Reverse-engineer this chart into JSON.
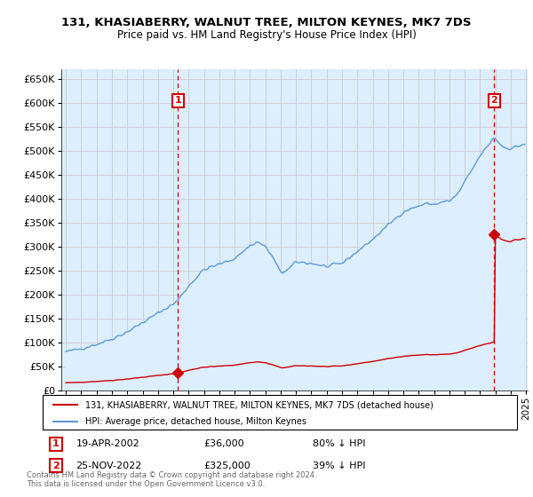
{
  "title": "131, KHASIABERRY, WALNUT TREE, MILTON KEYNES, MK7 7DS",
  "subtitle": "Price paid vs. HM Land Registry's House Price Index (HPI)",
  "legend_line1": "131, KHASIABERRY, WALNUT TREE, MILTON KEYNES, MK7 7DS (detached house)",
  "legend_line2": "HPI: Average price, detached house, Milton Keynes",
  "annotation1_date": "19-APR-2002",
  "annotation1_price": "£36,000",
  "annotation1_hpi": "80% ↓ HPI",
  "annotation2_date": "25-NOV-2022",
  "annotation2_price": "£325,000",
  "annotation2_hpi": "39% ↓ HPI",
  "footer": "Contains HM Land Registry data © Crown copyright and database right 2024.\nThis data is licensed under the Open Government Licence v3.0.",
  "ylim": [
    0,
    670000
  ],
  "sale1_x": 2002.3,
  "sale1_price": 36000,
  "sale2_x": 2022.92,
  "sale2_price": 325000,
  "hpi_color": "#5b9bd5",
  "hpi_fill_color": "#ddeeff",
  "price_color": "#cc0000",
  "vline_color": "#cc0000",
  "background_color": "#ffffff",
  "grid_color": "#cccccc",
  "xmin": 1995.0,
  "xmax": 2025.0
}
